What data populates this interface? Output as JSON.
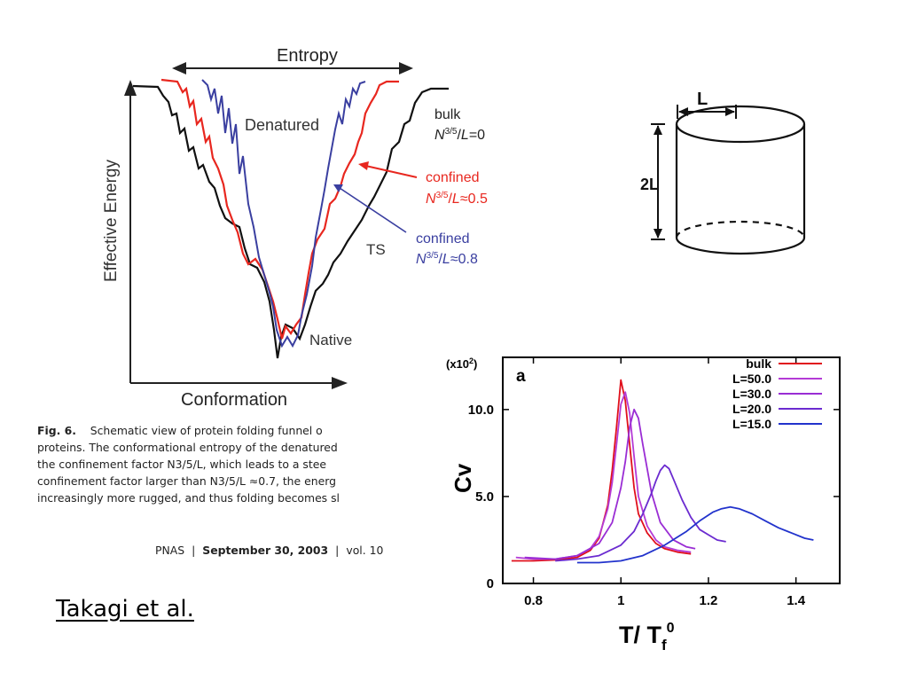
{
  "funnel": {
    "entropy_label": "Entropy",
    "yaxis_label": "Effective Energy",
    "xaxis_label": "Conformation",
    "denatured_label": "Denatured",
    "ts_label": "TS",
    "native_label": "Native",
    "curves": [
      {
        "name": "bulk",
        "formula": "N^{3/5}/L=0",
        "color": "#111111"
      },
      {
        "name": "confined",
        "formula": "N^{3/5}/L≈0.5",
        "color": "#e8271f"
      },
      {
        "name": "confined",
        "formula": "N^{3/5}/L≈0.8",
        "color": "#3a3fa0"
      }
    ]
  },
  "caption": {
    "fig_label": "Fig. 6.",
    "lines": [
      "Schematic view of protein folding funnel o",
      "proteins. The conformational entropy of the denatured",
      "the confinement factor N3/5/L, which leads to a stee",
      "confinement factor larger than N3/5/L ≈0.7, the energ",
      "increasingly more rugged, and thus folding becomes sl"
    ]
  },
  "journal": {
    "name": "PNAS",
    "date": "September 30, 2003",
    "volume": "vol. 10"
  },
  "citation": "Takagi et al.",
  "cylinder": {
    "width_label": "L",
    "height_label": "2L"
  },
  "chart_data": {
    "type": "line",
    "panel_label": "a",
    "xlabel": "T/ Tf0",
    "ylabel": "Cv",
    "yscale_label": "(x10^2)",
    "xlim": [
      0.73,
      1.5
    ],
    "ylim": [
      0,
      13.0
    ],
    "xticks": [
      "0.8",
      "1",
      "1.2",
      "1.4"
    ],
    "yticks": [
      "0",
      "5.0",
      "10.0"
    ],
    "legend_position": "top-right",
    "series": [
      {
        "name": "bulk",
        "color": "#e0101c",
        "x": [
          0.75,
          0.8,
          0.85,
          0.9,
          0.93,
          0.95,
          0.97,
          0.98,
          0.99,
          1.0,
          1.01,
          1.02,
          1.03,
          1.04,
          1.06,
          1.08,
          1.1,
          1.13,
          1.16
        ],
        "y": [
          1.3,
          1.3,
          1.35,
          1.5,
          1.9,
          2.6,
          4.5,
          6.5,
          9.0,
          11.7,
          10.5,
          8.0,
          5.5,
          4.0,
          2.9,
          2.3,
          2.0,
          1.8,
          1.7
        ]
      },
      {
        "name": "L=50.0",
        "color": "#b43bd6",
        "x": [
          0.76,
          0.8,
          0.85,
          0.9,
          0.93,
          0.95,
          0.97,
          0.98,
          0.99,
          1.0,
          1.01,
          1.02,
          1.03,
          1.04,
          1.06,
          1.08,
          1.1,
          1.13,
          1.16
        ],
        "y": [
          1.5,
          1.4,
          1.4,
          1.6,
          2.0,
          2.7,
          4.3,
          5.8,
          8.0,
          10.3,
          11.0,
          9.8,
          7.3,
          5.0,
          3.3,
          2.5,
          2.1,
          1.9,
          1.8
        ]
      },
      {
        "name": "L=30.0",
        "color": "#9a2dd4",
        "x": [
          0.78,
          0.85,
          0.9,
          0.95,
          0.98,
          1.0,
          1.01,
          1.02,
          1.03,
          1.04,
          1.05,
          1.07,
          1.09,
          1.12,
          1.15,
          1.17
        ],
        "y": [
          1.5,
          1.4,
          1.6,
          2.3,
          3.5,
          5.5,
          7.0,
          9.0,
          10.0,
          9.5,
          8.0,
          5.2,
          3.5,
          2.5,
          2.1,
          2.0
        ]
      },
      {
        "name": "L=20.0",
        "color": "#6b2bd0",
        "x": [
          0.85,
          0.9,
          0.95,
          1.0,
          1.03,
          1.05,
          1.07,
          1.08,
          1.09,
          1.1,
          1.11,
          1.12,
          1.14,
          1.16,
          1.18,
          1.2,
          1.22,
          1.24
        ],
        "y": [
          1.3,
          1.4,
          1.6,
          2.2,
          3.0,
          4.0,
          5.2,
          5.9,
          6.5,
          6.8,
          6.6,
          6.0,
          4.8,
          3.8,
          3.1,
          2.8,
          2.5,
          2.4
        ]
      },
      {
        "name": "L=15.0",
        "color": "#2233cc",
        "x": [
          0.9,
          0.95,
          1.0,
          1.05,
          1.1,
          1.15,
          1.18,
          1.21,
          1.23,
          1.25,
          1.27,
          1.3,
          1.33,
          1.36,
          1.39,
          1.42,
          1.44
        ],
        "y": [
          1.2,
          1.2,
          1.3,
          1.6,
          2.2,
          3.0,
          3.6,
          4.1,
          4.3,
          4.4,
          4.3,
          4.0,
          3.6,
          3.2,
          2.9,
          2.6,
          2.5
        ]
      }
    ]
  }
}
